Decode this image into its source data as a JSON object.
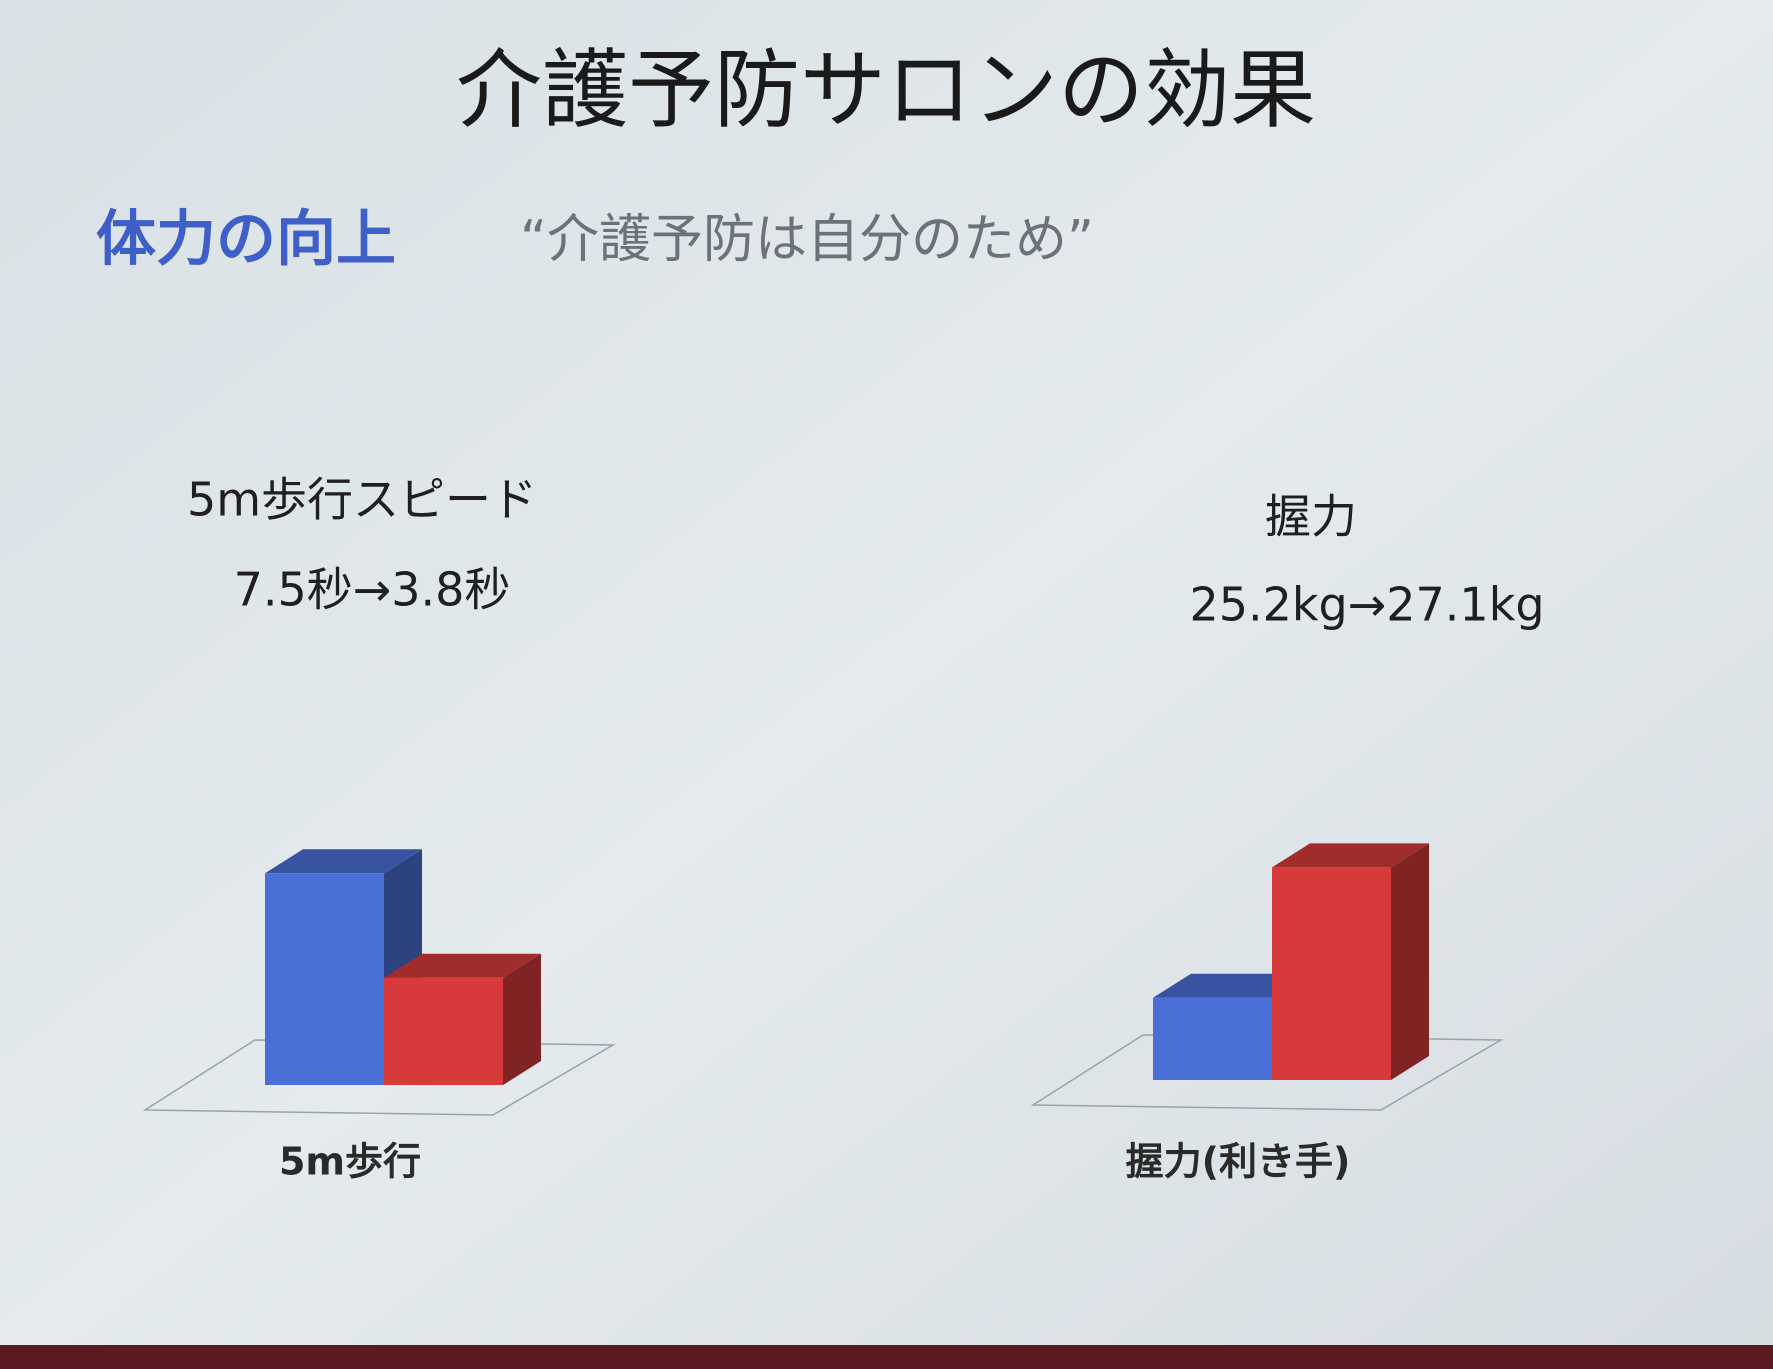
{
  "slide": {
    "title": "介護予防サロンの効果",
    "heading": "体力の向上",
    "quote": "“介護予防は自分のため”"
  },
  "chart_data": [
    {
      "type": "bar",
      "title": "5m歩行スピード",
      "annotation": "7.5秒→3.8秒",
      "xlabel": "5m歩行",
      "values": [
        7.5,
        3.8
      ],
      "colors": [
        "#4a6fd6",
        "#d63a3a"
      ],
      "ylim": [
        0,
        8.5
      ]
    },
    {
      "type": "bar",
      "title": "握力",
      "annotation": "25.2kg→27.1kg",
      "xlabel": "握力(利き手)",
      "values": [
        25.2,
        27.1
      ],
      "colors": [
        "#4a6fd6",
        "#d63a3a"
      ],
      "ylim": [
        24,
        27.5
      ]
    }
  ]
}
